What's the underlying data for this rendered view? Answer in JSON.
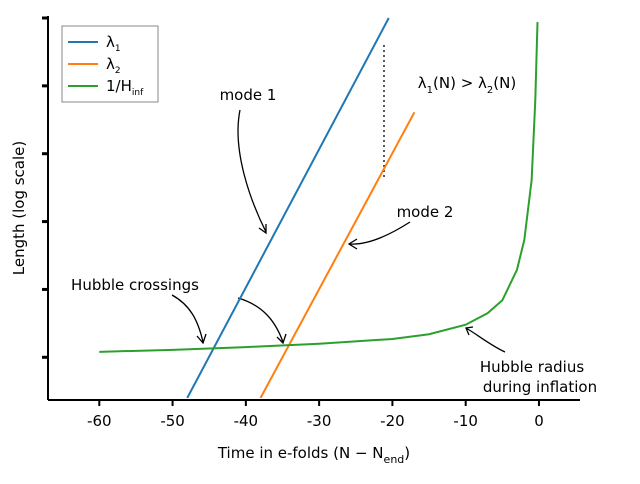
{
  "chart_data": {
    "type": "line",
    "xlabel": [
      "Time in e-folds (N − N",
      "end",
      ")"
    ],
    "ylabel": "Length (log scale)",
    "annotations": {
      "inequality": [
        "λ",
        "1",
        "(N) > λ",
        "2",
        "(N)"
      ],
      "mode1": "mode 1",
      "mode2": "mode 2",
      "crossings": "Hubble crossings",
      "radius1": "Hubble radius",
      "radius2": "during inflation"
    },
    "xlim": [
      -67,
      5.6
    ],
    "ylim": [
      0,
      5.6
    ],
    "xticks": [
      -60,
      -50,
      -40,
      -30,
      -20,
      -10,
      0
    ],
    "yticks": [
      0.6,
      1.6,
      2.6,
      3.6,
      4.6,
      5.6
    ],
    "ytick_labels": false,
    "log_scale_y": true,
    "legend_position": "upper left",
    "series": [
      {
        "name": "λ",
        "subscript": "1",
        "color": "#1f77b4",
        "x": [
          -48,
          -20.5
        ],
        "values": [
          0,
          5.6
        ]
      },
      {
        "name": "λ",
        "subscript": "2",
        "color": "#ff7f0e",
        "x": [
          -38,
          -17
        ],
        "values": [
          0,
          4.21
        ]
      },
      {
        "name": "1/H",
        "subscript": "inf",
        "color": "#2ca02c",
        "x": [
          -60,
          -50,
          -40,
          -30,
          -20,
          -15,
          -10,
          -7,
          -5,
          -3,
          -2,
          -1,
          -0.5,
          -0.2
        ],
        "values": [
          0.68,
          0.71,
          0.75,
          0.8,
          0.87,
          0.94,
          1.08,
          1.25,
          1.44,
          1.89,
          2.33,
          3.21,
          4.39,
          5.54
        ]
      }
    ]
  }
}
